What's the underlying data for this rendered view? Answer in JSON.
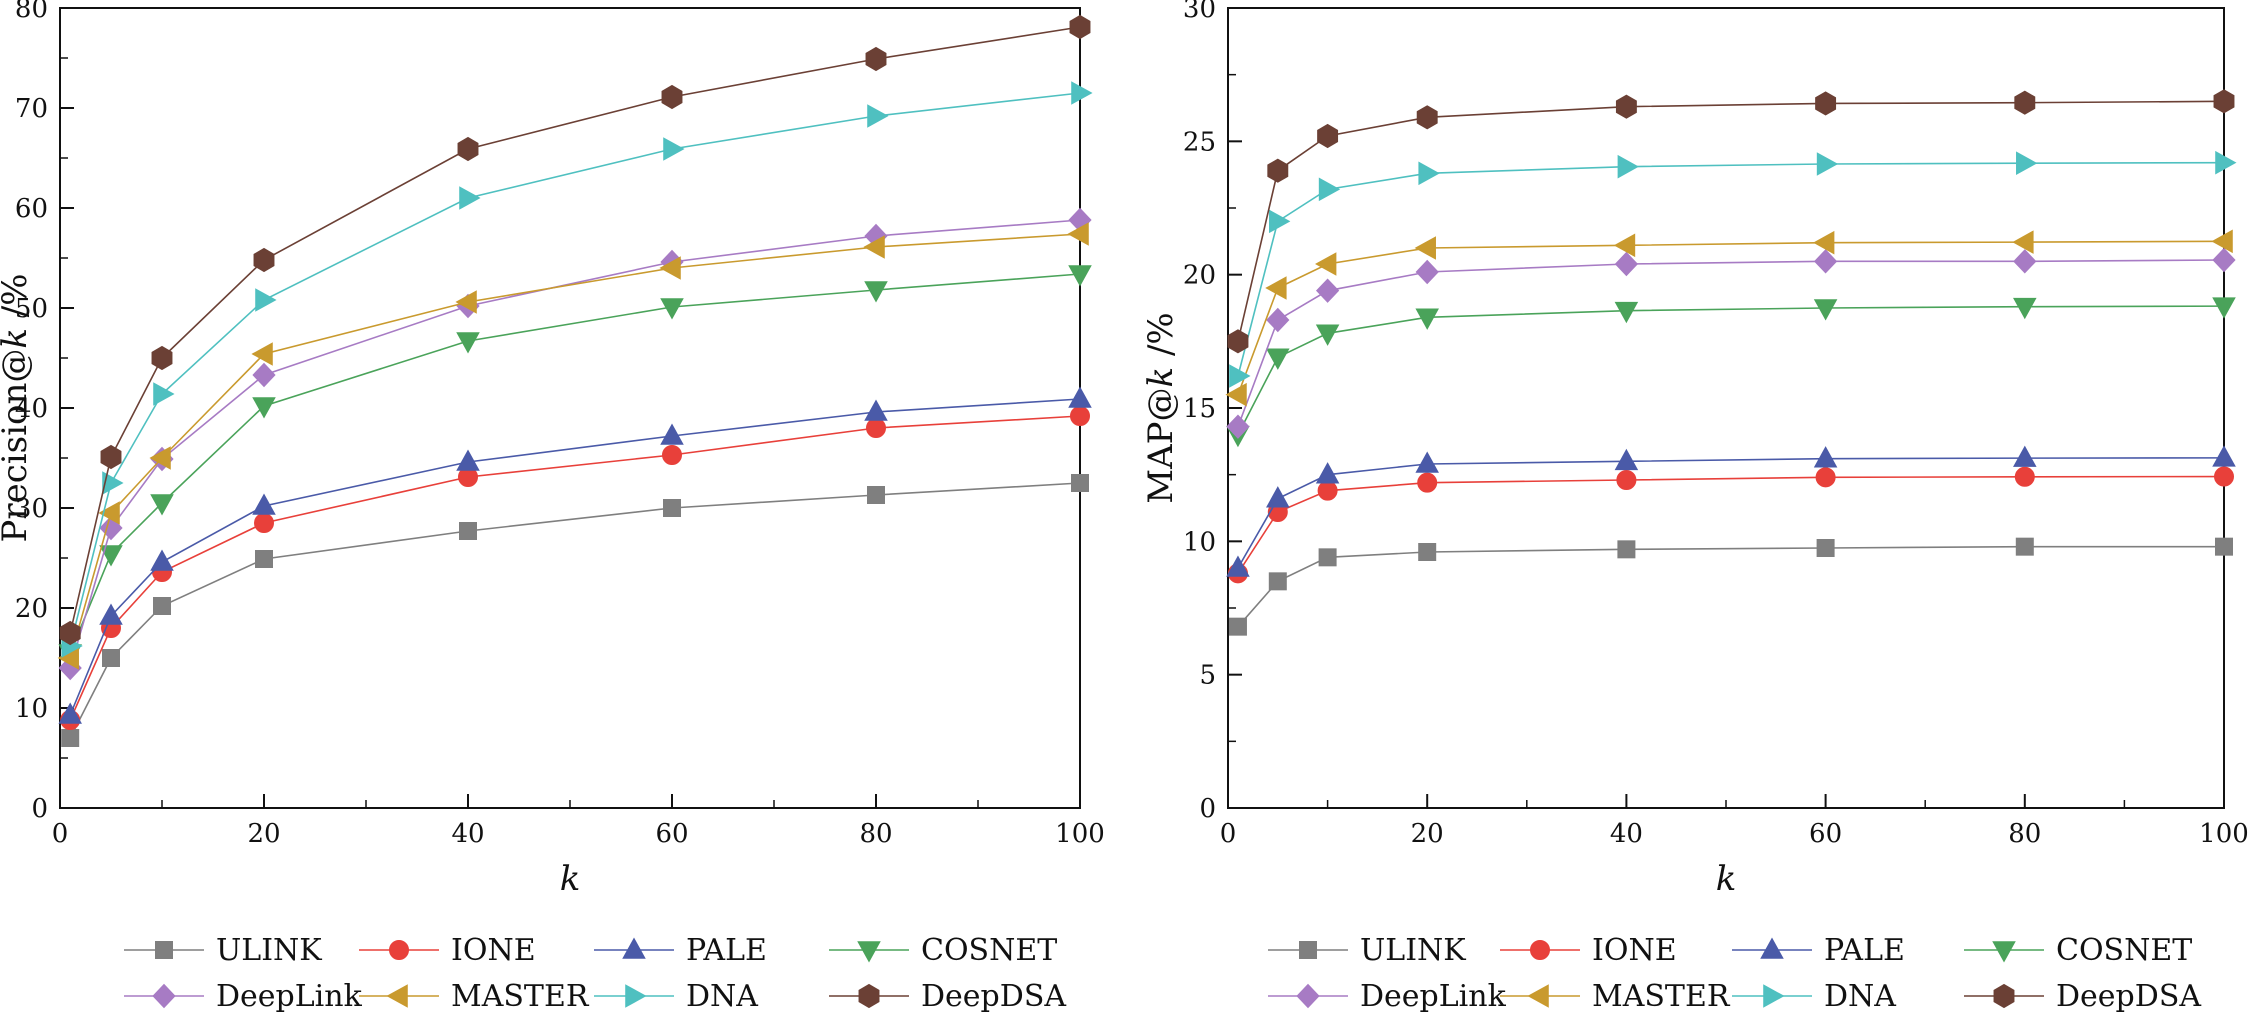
{
  "chart_data": [
    {
      "type": "line",
      "xlabel": "k",
      "ylabel_main": "Precision@",
      "ylabel_italic": "k",
      "ylabel_unit": " /%",
      "xlim": [
        0,
        100
      ],
      "ylim": [
        0,
        80
      ],
      "xticks": [
        0,
        20,
        40,
        60,
        80,
        100
      ],
      "yticks": [
        0,
        10,
        20,
        30,
        40,
        50,
        60,
        70,
        80
      ],
      "x": [
        1,
        5,
        10,
        20,
        40,
        60,
        80,
        100
      ],
      "series": [
        {
          "name": "ULINK",
          "marker": "square",
          "color": "#7f7f7f",
          "values": [
            7.0,
            15.0,
            20.2,
            24.9,
            27.7,
            30.0,
            31.3,
            32.5
          ]
        },
        {
          "name": "IONE",
          "marker": "circle",
          "color": "#e8403a",
          "values": [
            8.8,
            18.0,
            23.6,
            28.5,
            33.1,
            35.3,
            38.0,
            39.2
          ]
        },
        {
          "name": "PALE",
          "marker": "triangle-up",
          "color": "#4a5aa8",
          "values": [
            9.3,
            19.2,
            24.6,
            30.2,
            34.6,
            37.2,
            39.6,
            40.9
          ]
        },
        {
          "name": "COSNET",
          "marker": "triangle-down",
          "color": "#4aa35a",
          "values": [
            15.5,
            25.4,
            30.5,
            40.2,
            46.7,
            50.1,
            51.8,
            53.4
          ]
        },
        {
          "name": "DeepLink",
          "marker": "diamond",
          "color": "#a77bc4",
          "values": [
            14.0,
            28.0,
            34.9,
            43.3,
            50.2,
            54.6,
            57.2,
            58.8
          ]
        },
        {
          "name": "MASTER",
          "marker": "triangle-left",
          "color": "#c99a2e",
          "values": [
            15.0,
            29.5,
            35.0,
            45.4,
            50.6,
            54.0,
            56.1,
            57.4
          ]
        },
        {
          "name": "DNA",
          "marker": "triangle-right",
          "color": "#4fc0c0",
          "values": [
            16.2,
            32.5,
            41.4,
            50.8,
            61.0,
            65.9,
            69.2,
            71.5
          ]
        },
        {
          "name": "DeepDSA",
          "marker": "hexagon",
          "color": "#6b4035",
          "values": [
            17.5,
            35.1,
            45.0,
            54.8,
            65.9,
            71.1,
            74.9,
            78.1
          ]
        }
      ]
    },
    {
      "type": "line",
      "xlabel": "k",
      "ylabel_main": "MAP@",
      "ylabel_italic": "k",
      "ylabel_unit": " /%",
      "xlim": [
        0,
        100
      ],
      "ylim": [
        0,
        30
      ],
      "xticks": [
        0,
        20,
        40,
        60,
        80,
        100
      ],
      "yticks": [
        0,
        5,
        10,
        15,
        20,
        25,
        30
      ],
      "x": [
        1,
        5,
        10,
        20,
        40,
        60,
        80,
        100
      ],
      "series": [
        {
          "name": "ULINK",
          "marker": "square",
          "color": "#7f7f7f",
          "values": [
            6.8,
            8.5,
            9.4,
            9.6,
            9.7,
            9.75,
            9.8,
            9.8
          ]
        },
        {
          "name": "IONE",
          "marker": "circle",
          "color": "#e8403a",
          "values": [
            8.8,
            11.1,
            11.9,
            12.2,
            12.3,
            12.4,
            12.42,
            12.43
          ]
        },
        {
          "name": "PALE",
          "marker": "triangle-up",
          "color": "#4a5aa8",
          "values": [
            9.0,
            11.6,
            12.5,
            12.9,
            13.0,
            13.1,
            13.12,
            13.13
          ]
        },
        {
          "name": "COSNET",
          "marker": "triangle-down",
          "color": "#4aa35a",
          "values": [
            14.0,
            16.9,
            17.8,
            18.4,
            18.65,
            18.75,
            18.8,
            18.82
          ]
        },
        {
          "name": "DeepLink",
          "marker": "diamond",
          "color": "#a77bc4",
          "values": [
            14.3,
            18.3,
            19.4,
            20.1,
            20.4,
            20.5,
            20.5,
            20.55
          ]
        },
        {
          "name": "MASTER",
          "marker": "triangle-left",
          "color": "#c99a2e",
          "values": [
            15.5,
            19.5,
            20.4,
            21.0,
            21.1,
            21.2,
            21.22,
            21.25
          ]
        },
        {
          "name": "DNA",
          "marker": "triangle-right",
          "color": "#4fc0c0",
          "values": [
            16.2,
            22.0,
            23.2,
            23.8,
            24.05,
            24.15,
            24.18,
            24.2
          ]
        },
        {
          "name": "DeepDSA",
          "marker": "hexagon",
          "color": "#6b4035",
          "values": [
            17.5,
            23.9,
            25.2,
            25.9,
            26.3,
            26.42,
            26.45,
            26.5
          ]
        }
      ]
    }
  ]
}
